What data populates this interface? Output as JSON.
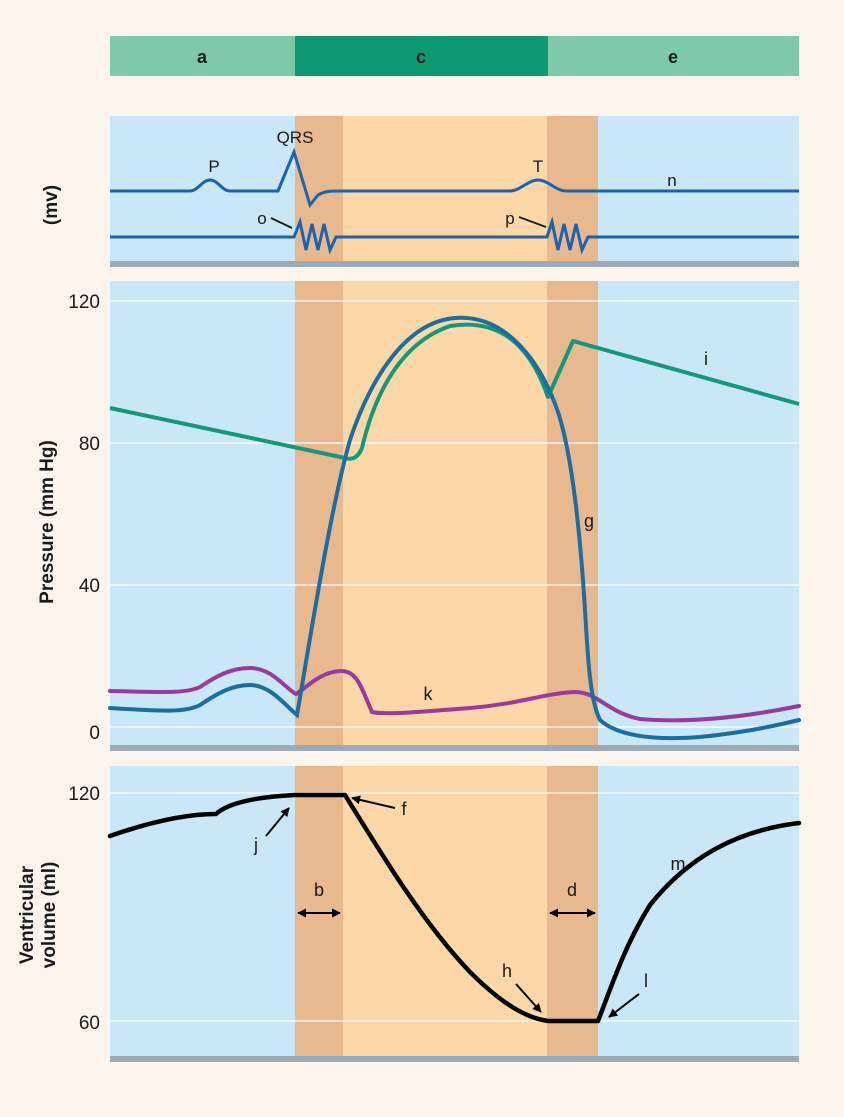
{
  "phase_bar": {
    "a": "a",
    "c": "c",
    "e": "e"
  },
  "ecg": {
    "ylabel": "(mv)",
    "P": "P",
    "QRS": "QRS",
    "T": "T",
    "n": "n",
    "o": "o",
    "p": "p"
  },
  "pressure": {
    "ylabel": "Pressure (mm Hg)",
    "ticks": [
      "120",
      "80",
      "40",
      "0"
    ],
    "labels": {
      "g": "g",
      "i": "i",
      "k": "k"
    }
  },
  "volume": {
    "ylabel_line1": "Ventricular",
    "ylabel_line2": "volume (ml)",
    "ticks": [
      "120",
      "60"
    ],
    "labels": {
      "j": "j",
      "f": "f",
      "b": "b",
      "d": "d",
      "h": "h",
      "m": "m",
      "l": "l"
    }
  },
  "colors": {
    "bar_light": "#7ec9a7",
    "bar_dark": "#0d9a73",
    "panel_blue": "#c9e7f7",
    "band_brown": "#e8b88e",
    "band_orange": "#fcd7a7",
    "line_blue": "#1a63ad",
    "aortic": "#15977a",
    "ventricular": "#1b6fa0",
    "atrial": "#9a3a9c",
    "volume": "#000000"
  }
}
